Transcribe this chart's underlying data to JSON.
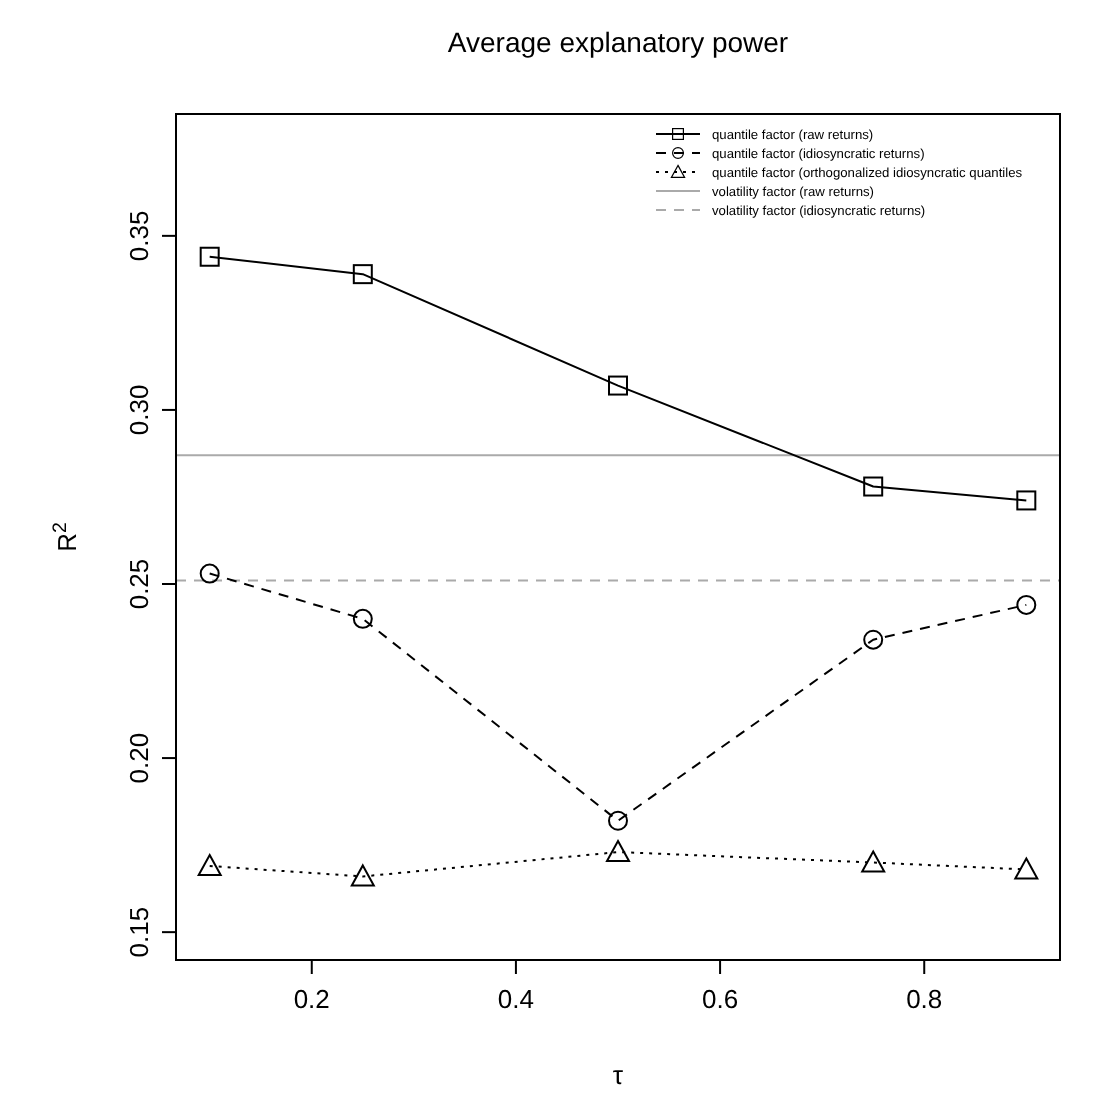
{
  "chart_data": {
    "type": "line",
    "title": "Average explanatory power",
    "xlabel": "τ",
    "ylabel": "R$^{2}$",
    "x": [
      0.1,
      0.25,
      0.5,
      0.75,
      0.9
    ],
    "series": [
      {
        "name": "quantile factor (raw returns)",
        "color": "#000000",
        "values": [
          0.344,
          0.339,
          0.307,
          0.278,
          0.274
        ],
        "marker": "square",
        "line_style": "solid"
      },
      {
        "name": "quantile factor (idiosyncratic returns)",
        "color": "#000000",
        "values": [
          0.253,
          0.24,
          0.182,
          0.234,
          0.244
        ],
        "marker": "circle",
        "line_style": "dashed"
      },
      {
        "name": "quantile factor (orthogonalized idiosyncratic quantiles",
        "color": "#000000",
        "values": [
          0.169,
          0.166,
          0.173,
          0.17,
          0.168
        ],
        "marker": "triangle",
        "line_style": "dotted"
      }
    ],
    "ref_lines": [
      {
        "axis": "y",
        "value": 0.287,
        "label": "volatility factor (raw returns)",
        "color": "#aaaaaa",
        "line_style": "solid"
      },
      {
        "axis": "y",
        "value": 0.251,
        "label": "volatility factor (idiosyncratic returns)",
        "color": "#aaaaaa",
        "line_style": "dashed"
      }
    ],
    "xlim": [
      0.067,
      0.933
    ],
    "ylim": [
      0.142,
      0.385
    ],
    "xticks": [
      0.2,
      0.4,
      0.6,
      0.8
    ],
    "yticks": [
      {
        "value": 0.15,
        "label": "0.15"
      },
      {
        "value": 0.2,
        "label": "0.20"
      },
      {
        "value": 0.25,
        "label": "0.25"
      },
      {
        "value": 0.3,
        "label": "0.30"
      },
      {
        "value": 0.35,
        "label": "0.35"
      }
    ],
    "legend": "top right",
    "grid": false
  }
}
